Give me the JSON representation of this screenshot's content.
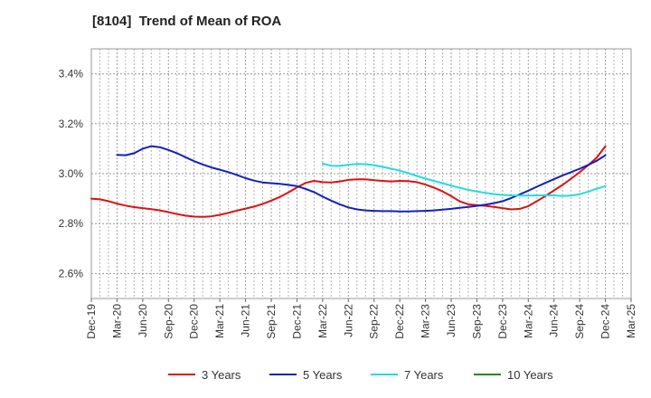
{
  "chart_data": {
    "type": "line",
    "title": "[8104]  Trend of Mean of ROA",
    "xlabel": "",
    "ylabel": "",
    "x_ticks": [
      "Dec-19",
      "Mar-20",
      "Jun-20",
      "Sep-20",
      "Dec-20",
      "Mar-21",
      "Jun-21",
      "Sep-21",
      "Dec-21",
      "Mar-22",
      "Jun-22",
      "Sep-22",
      "Dec-22",
      "Mar-23",
      "Jun-23",
      "Sep-23",
      "Dec-23",
      "Mar-24",
      "Jun-24",
      "Sep-24",
      "Dec-24",
      "Mar-25"
    ],
    "y_ticks": [
      "2.6%",
      "2.8%",
      "3.0%",
      "3.2%",
      "3.4%"
    ],
    "y_tick_values": [
      2.6,
      2.8,
      3.0,
      3.2,
      3.4
    ],
    "ylim": [
      2.5,
      3.5
    ],
    "y_unit": "%",
    "grid": true,
    "legend_position": "bottom",
    "series": [
      {
        "name": "3 Years",
        "color": "#dd1111",
        "x": [
          "Dec-19",
          "Jan-20",
          "Feb-20",
          "Mar-20",
          "Apr-20",
          "May-20",
          "Jun-20",
          "Jul-20",
          "Aug-20",
          "Sep-20",
          "Oct-20",
          "Nov-20",
          "Dec-20",
          "Jan-21",
          "Feb-21",
          "Mar-21",
          "Apr-21",
          "May-21",
          "Jun-21",
          "Jul-21",
          "Aug-21",
          "Sep-21",
          "Oct-21",
          "Nov-21",
          "Dec-21",
          "Jan-22",
          "Feb-22",
          "Mar-22",
          "Apr-22",
          "May-22",
          "Jun-22",
          "Jul-22",
          "Aug-22",
          "Sep-22",
          "Oct-22",
          "Nov-22",
          "Dec-22",
          "Jan-23",
          "Feb-23",
          "Mar-23",
          "Apr-23",
          "May-23",
          "Jun-23",
          "Jul-23",
          "Aug-23",
          "Sep-23",
          "Oct-23",
          "Nov-23",
          "Dec-23",
          "Jan-24",
          "Feb-24",
          "Mar-24",
          "Apr-24",
          "May-24",
          "Jun-24",
          "Jul-24",
          "Aug-24",
          "Sep-24",
          "Oct-24",
          "Nov-24",
          "Dec-24"
        ],
        "values": [
          2.9,
          2.897,
          2.89,
          2.88,
          2.872,
          2.866,
          2.862,
          2.858,
          2.853,
          2.846,
          2.838,
          2.832,
          2.828,
          2.827,
          2.829,
          2.835,
          2.843,
          2.852,
          2.86,
          2.868,
          2.879,
          2.892,
          2.907,
          2.925,
          2.945,
          2.963,
          2.971,
          2.966,
          2.965,
          2.969,
          2.975,
          2.977,
          2.977,
          2.974,
          2.971,
          2.969,
          2.971,
          2.97,
          2.966,
          2.956,
          2.944,
          2.929,
          2.91,
          2.889,
          2.877,
          2.874,
          2.871,
          2.867,
          2.862,
          2.857,
          2.859,
          2.87,
          2.89,
          2.91,
          2.933,
          2.955,
          2.98,
          3.006,
          3.034,
          3.065,
          3.11
        ]
      },
      {
        "name": "5 Years",
        "color": "#1122bb",
        "x": [
          "Mar-20",
          "Apr-20",
          "May-20",
          "Jun-20",
          "Jul-20",
          "Aug-20",
          "Sep-20",
          "Oct-20",
          "Nov-20",
          "Dec-20",
          "Jan-21",
          "Feb-21",
          "Mar-21",
          "Apr-21",
          "May-21",
          "Jun-21",
          "Jul-21",
          "Aug-21",
          "Sep-21",
          "Oct-21",
          "Nov-21",
          "Dec-21",
          "Jan-22",
          "Feb-22",
          "Mar-22",
          "Apr-22",
          "May-22",
          "Jun-22",
          "Jul-22",
          "Aug-22",
          "Sep-22",
          "Oct-22",
          "Nov-22",
          "Dec-22",
          "Jan-23",
          "Feb-23",
          "Mar-23",
          "Apr-23",
          "May-23",
          "Jun-23",
          "Jul-23",
          "Aug-23",
          "Sep-23",
          "Oct-23",
          "Nov-23",
          "Dec-23",
          "Jan-24",
          "Feb-24",
          "Mar-24",
          "Apr-24",
          "May-24",
          "Jun-24",
          "Jul-24",
          "Aug-24",
          "Sep-24",
          "Oct-24",
          "Nov-24",
          "Dec-24"
        ],
        "values": [
          3.075,
          3.074,
          3.082,
          3.1,
          3.11,
          3.106,
          3.095,
          3.082,
          3.066,
          3.05,
          3.037,
          3.025,
          3.016,
          3.006,
          2.995,
          2.982,
          2.972,
          2.965,
          2.962,
          2.959,
          2.955,
          2.95,
          2.939,
          2.926,
          2.908,
          2.892,
          2.877,
          2.865,
          2.857,
          2.853,
          2.851,
          2.85,
          2.85,
          2.849,
          2.849,
          2.85,
          2.851,
          2.853,
          2.856,
          2.859,
          2.863,
          2.867,
          2.871,
          2.876,
          2.882,
          2.89,
          2.902,
          2.917,
          2.932,
          2.948,
          2.963,
          2.978,
          2.993,
          3.006,
          3.02,
          3.035,
          3.052,
          3.074
        ]
      },
      {
        "name": "7 Years",
        "color": "#22dddd",
        "x": [
          "Mar-22",
          "Apr-22",
          "May-22",
          "Jun-22",
          "Jul-22",
          "Aug-22",
          "Sep-22",
          "Oct-22",
          "Nov-22",
          "Dec-22",
          "Jan-23",
          "Feb-23",
          "Mar-23",
          "Apr-23",
          "May-23",
          "Jun-23",
          "Jul-23",
          "Aug-23",
          "Sep-23",
          "Oct-23",
          "Nov-23",
          "Dec-23",
          "Jan-24",
          "Feb-24",
          "Mar-24",
          "Apr-24",
          "May-24",
          "Jun-24",
          "Jul-24",
          "Aug-24",
          "Sep-24",
          "Oct-24",
          "Nov-24",
          "Dec-24"
        ],
        "values": [
          3.04,
          3.032,
          3.031,
          3.036,
          3.039,
          3.038,
          3.034,
          3.027,
          3.02,
          3.012,
          3.002,
          2.991,
          2.98,
          2.971,
          2.962,
          2.952,
          2.943,
          2.935,
          2.929,
          2.923,
          2.918,
          2.915,
          2.913,
          2.912,
          2.912,
          2.913,
          2.913,
          2.913,
          2.911,
          2.912,
          2.918,
          2.928,
          2.94,
          2.95
        ]
      },
      {
        "name": "10 Years",
        "color": "#228822",
        "x": [],
        "values": []
      }
    ]
  }
}
